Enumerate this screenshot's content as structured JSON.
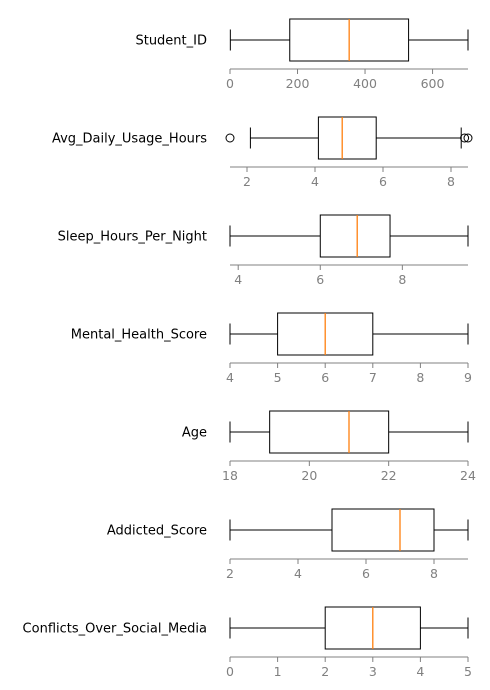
{
  "chart_data": [
    {
      "type": "box",
      "label": "Student_ID",
      "xlim": [
        0,
        705
      ],
      "ticks": [
        0,
        200,
        400,
        600
      ],
      "stats": {
        "whislo": 1,
        "q1": 177,
        "med": 353,
        "q3": 529,
        "whishi": 705
      },
      "fliers": []
    },
    {
      "type": "box",
      "label": "Avg_Daily_Usage_Hours",
      "xlim": [
        1.5,
        8.5
      ],
      "ticks": [
        2,
        4,
        6,
        8
      ],
      "stats": {
        "whislo": 2.1,
        "q1": 4.1,
        "med": 4.8,
        "q3": 5.8,
        "whishi": 8.3
      },
      "fliers": [
        1.5,
        8.4,
        8.5
      ]
    },
    {
      "type": "box",
      "label": "Sleep_Hours_Per_Night",
      "xlim": [
        3.8,
        9.6
      ],
      "ticks": [
        4,
        6,
        8
      ],
      "stats": {
        "whislo": 3.8,
        "q1": 6.0,
        "med": 6.9,
        "q3": 7.7,
        "whishi": 9.6
      },
      "fliers": []
    },
    {
      "type": "box",
      "label": "Mental_Health_Score",
      "xlim": [
        4,
        9
      ],
      "ticks": [
        4,
        5,
        6,
        7,
        8,
        9
      ],
      "stats": {
        "whislo": 4,
        "q1": 5,
        "med": 6,
        "q3": 7,
        "whishi": 9
      },
      "fliers": []
    },
    {
      "type": "box",
      "label": "Age",
      "xlim": [
        18,
        24
      ],
      "ticks": [
        18,
        20,
        22,
        24
      ],
      "stats": {
        "whislo": 18,
        "q1": 19,
        "med": 21,
        "q3": 22,
        "whishi": 24
      },
      "fliers": []
    },
    {
      "type": "box",
      "label": "Addicted_Score",
      "xlim": [
        2,
        9
      ],
      "ticks": [
        2,
        4,
        6,
        8
      ],
      "stats": {
        "whislo": 2,
        "q1": 5,
        "med": 7,
        "q3": 8,
        "whishi": 9
      },
      "fliers": []
    },
    {
      "type": "box",
      "label": "Conflicts_Over_Social_Media",
      "xlim": [
        0,
        5
      ],
      "ticks": [
        0,
        1,
        2,
        3,
        4,
        5
      ],
      "stats": {
        "whislo": 0,
        "q1": 2,
        "med": 3,
        "q3": 4,
        "whishi": 5
      },
      "fliers": []
    }
  ],
  "colors": {
    "box_edge": "#000000",
    "median": "#ff7f0e",
    "axis": "#808080",
    "tick_label": "#808080",
    "label": "#000000"
  }
}
